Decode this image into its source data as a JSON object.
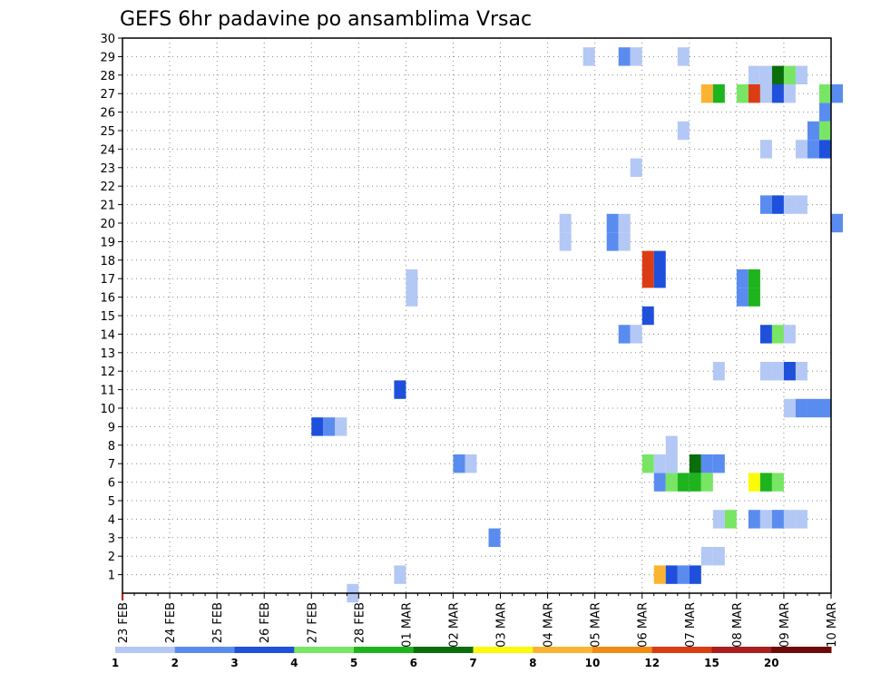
{
  "chart_data": {
    "type": "heatmap",
    "title": "GEFS 6hr padavine po ansamblima Vrsac",
    "xlabel": "",
    "ylabel": "",
    "x_tick_labels": [
      "23 FEB",
      "24 FEB",
      "25 FEB",
      "26 FEB",
      "27 FEB",
      "28 FEB",
      "01 MAR",
      "02 MAR",
      "03 MAR",
      "04 MAR",
      "05 MAR",
      "06 MAR",
      "07 MAR",
      "08 MAR",
      "09 MAR",
      "10 MAR"
    ],
    "x_range_days": [
      0,
      15
    ],
    "time_step_hours": 6,
    "y_range": [
      0,
      30
    ],
    "y_ticks": [
      1,
      2,
      3,
      4,
      5,
      6,
      7,
      8,
      9,
      10,
      11,
      12,
      13,
      14,
      15,
      16,
      17,
      18,
      19,
      20,
      21,
      22,
      23,
      24,
      25,
      26,
      27,
      28,
      29,
      30
    ],
    "grid": "dotted",
    "colorbar": {
      "placement": "bottom",
      "labels": [
        "1",
        "2",
        "3",
        "4",
        "5",
        "6",
        "7",
        "8",
        "10",
        "12",
        "15",
        "20"
      ],
      "colors": [
        "#b4c8f5",
        "#5a8cf0",
        "#1e50dc",
        "#78e664",
        "#1eb41e",
        "#0a6e0a",
        "#fafa0a",
        "#fab432",
        "#f08c14",
        "#dc3c14",
        "#aa1e1e",
        "#6e0a0a"
      ]
    },
    "cells": [
      {
        "m": 1,
        "t": 47,
        "v": 2
      },
      {
        "m": 1,
        "t": 48,
        "v": 3
      },
      {
        "m": 1,
        "t": 23,
        "v": 1
      },
      {
        "m": 1,
        "t": 45,
        "v": 8
      },
      {
        "m": 1,
        "t": 46,
        "v": 3
      },
      {
        "m": 2,
        "t": 49,
        "v": 1
      },
      {
        "m": 2,
        "t": 50,
        "v": 1
      },
      {
        "m": 3,
        "t": 31,
        "v": 2
      },
      {
        "m": 4,
        "t": 50,
        "v": 1
      },
      {
        "m": 4,
        "t": 51,
        "v": 4
      },
      {
        "m": 4,
        "t": 53,
        "v": 2
      },
      {
        "m": 4,
        "t": 54,
        "v": 1
      },
      {
        "m": 4,
        "t": 55,
        "v": 2
      },
      {
        "m": 4,
        "t": 56,
        "v": 1
      },
      {
        "m": 4,
        "t": 57,
        "v": 1
      },
      {
        "m": 6,
        "t": 45,
        "v": 2
      },
      {
        "m": 6,
        "t": 46,
        "v": 4
      },
      {
        "m": 6,
        "t": 47,
        "v": 5
      },
      {
        "m": 6,
        "t": 48,
        "v": 5
      },
      {
        "m": 6,
        "t": 49,
        "v": 4
      },
      {
        "m": 6,
        "t": 53,
        "v": 7
      },
      {
        "m": 6,
        "t": 54,
        "v": 5
      },
      {
        "m": 6,
        "t": 55,
        "v": 4
      },
      {
        "m": 7,
        "t": 28,
        "v": 2
      },
      {
        "m": 7,
        "t": 29,
        "v": 1
      },
      {
        "m": 7,
        "t": 44,
        "v": 4
      },
      {
        "m": 7,
        "t": 45,
        "v": 1
      },
      {
        "m": 7,
        "t": 46,
        "v": 1
      },
      {
        "m": 7,
        "t": 48,
        "v": 6
      },
      {
        "m": 7,
        "t": 49,
        "v": 2
      },
      {
        "m": 7,
        "t": 50,
        "v": 2
      },
      {
        "m": 8,
        "t": 46,
        "v": 1
      },
      {
        "m": 9,
        "t": 16,
        "v": 3
      },
      {
        "m": 9,
        "t": 17,
        "v": 2
      },
      {
        "m": 9,
        "t": 18,
        "v": 1
      },
      {
        "m": 10,
        "t": 56,
        "v": 1
      },
      {
        "m": 10,
        "t": 57,
        "v": 2
      },
      {
        "m": 10,
        "t": 58,
        "v": 2
      },
      {
        "m": 10,
        "t": 59,
        "v": 2
      },
      {
        "m": 11,
        "t": 23,
        "v": 3
      },
      {
        "m": 12,
        "t": 50,
        "v": 1
      },
      {
        "m": 12,
        "t": 54,
        "v": 1
      },
      {
        "m": 12,
        "t": 55,
        "v": 1
      },
      {
        "m": 12,
        "t": 56,
        "v": 3
      },
      {
        "m": 12,
        "t": 57,
        "v": 1
      },
      {
        "m": 14,
        "t": 42,
        "v": 2
      },
      {
        "m": 14,
        "t": 43,
        "v": 1
      },
      {
        "m": 14,
        "t": 54,
        "v": 3
      },
      {
        "m": 14,
        "t": 55,
        "v": 4
      },
      {
        "m": 14,
        "t": 56,
        "v": 1
      },
      {
        "m": 15,
        "t": 44,
        "v": 3
      },
      {
        "m": 16,
        "t": 24,
        "v": 1
      },
      {
        "m": 16,
        "t": 52,
        "v": 2
      },
      {
        "m": 16,
        "t": 53,
        "v": 5
      },
      {
        "m": 17,
        "t": 24,
        "v": 1
      },
      {
        "m": 17,
        "t": 52,
        "v": 2
      },
      {
        "m": 17,
        "t": 53,
        "v": 5
      },
      {
        "m": 18,
        "t": 44,
        "v": 10
      },
      {
        "m": 18,
        "t": 45,
        "v": 3
      },
      {
        "m": 17,
        "t": 44,
        "v": 10
      },
      {
        "m": 17,
        "t": 45,
        "v": 3
      },
      {
        "m": 20,
        "t": 37,
        "v": 1
      },
      {
        "m": 20,
        "t": 41,
        "v": 2
      },
      {
        "m": 20,
        "t": 42,
        "v": 1
      },
      {
        "m": 20,
        "t": 60,
        "v": 2
      },
      {
        "m": 19,
        "t": 37,
        "v": 1
      },
      {
        "m": 19,
        "t": 41,
        "v": 2
      },
      {
        "m": 19,
        "t": 42,
        "v": 1
      },
      {
        "m": 21,
        "t": 54,
        "v": 2
      },
      {
        "m": 21,
        "t": 55,
        "v": 3
      },
      {
        "m": 21,
        "t": 56,
        "v": 1
      },
      {
        "m": 21,
        "t": 57,
        "v": 1
      },
      {
        "m": 23,
        "t": 43,
        "v": 1
      },
      {
        "m": 24,
        "t": 54,
        "v": 1
      },
      {
        "m": 24,
        "t": 57,
        "v": 1
      },
      {
        "m": 24,
        "t": 58,
        "v": 2
      },
      {
        "m": 24,
        "t": 59,
        "v": 3
      },
      {
        "m": 25,
        "t": 47,
        "v": 1
      },
      {
        "m": 25,
        "t": 58,
        "v": 2
      },
      {
        "m": 25,
        "t": 59,
        "v": 4
      },
      {
        "m": 26,
        "t": 59,
        "v": 2
      },
      {
        "m": 27,
        "t": 49,
        "v": 8
      },
      {
        "m": 27,
        "t": 50,
        "v": 5
      },
      {
        "m": 27,
        "t": 52,
        "v": 4
      },
      {
        "m": 27,
        "t": 53,
        "v": 10
      },
      {
        "m": 27,
        "t": 54,
        "v": 1
      },
      {
        "m": 27,
        "t": 55,
        "v": 3
      },
      {
        "m": 27,
        "t": 56,
        "v": 1
      },
      {
        "m": 27,
        "t": 59,
        "v": 4
      },
      {
        "m": 27,
        "t": 60,
        "v": 2
      },
      {
        "m": 28,
        "t": 53,
        "v": 1
      },
      {
        "m": 28,
        "t": 54,
        "v": 1
      },
      {
        "m": 28,
        "t": 55,
        "v": 6
      },
      {
        "m": 28,
        "t": 56,
        "v": 4
      },
      {
        "m": 28,
        "t": 57,
        "v": 1
      },
      {
        "m": 29,
        "t": 39,
        "v": 1
      },
      {
        "m": 29,
        "t": 42,
        "v": 2
      },
      {
        "m": 29,
        "t": 43,
        "v": 1
      },
      {
        "m": 29,
        "t": 47,
        "v": 1
      },
      {
        "m": 0,
        "t": 19,
        "v": 1
      }
    ]
  }
}
